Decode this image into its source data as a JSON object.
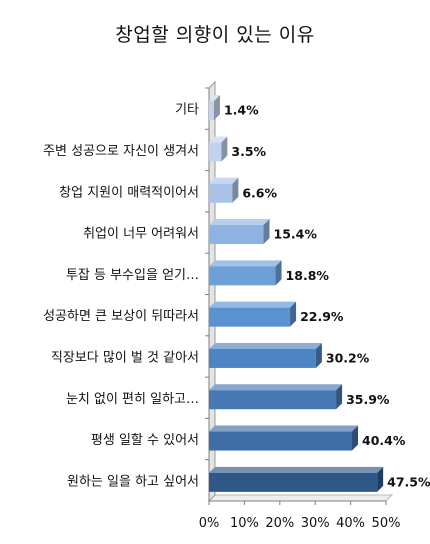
{
  "chart_data": {
    "type": "bar",
    "orientation": "horizontal",
    "title": "창업할 의향이 있는 이유",
    "xlabel": "",
    "ylabel": "",
    "xlim": [
      0,
      50
    ],
    "x_ticks": [
      "0%",
      "10%",
      "20%",
      "30%",
      "40%",
      "50%"
    ],
    "grid": false,
    "legend": "none",
    "categories": [
      "기타",
      "주변 성공으로 자신이 생겨서",
      "창업 지원이 매력적이어서",
      "취업이 너무 어려워서",
      "투잡 등 부수입을 얻기…",
      "성공하면 큰 보상이 뒤따라서",
      "직장보다 많이 벌 것 같아서",
      "눈치 없이 편히 일하고…",
      "평생 일할 수 있어서",
      "원하는 일을 하고 싶어서"
    ],
    "values": [
      1.4,
      3.5,
      6.6,
      15.4,
      18.8,
      22.9,
      30.2,
      35.9,
      40.4,
      47.5
    ],
    "value_labels": [
      "1.4%",
      "3.5%",
      "6.6%",
      "15.4%",
      "18.8%",
      "22.9%",
      "30.2%",
      "35.9%",
      "40.4%",
      "47.5%"
    ],
    "bar_colors": [
      "#c5d3ea",
      "#c0d2ee",
      "#a9c3e8",
      "#8eb3e2",
      "#6f9fd8",
      "#5a91d0",
      "#4e84c4",
      "#4679b6",
      "#3f6ea6",
      "#2f5888"
    ]
  }
}
